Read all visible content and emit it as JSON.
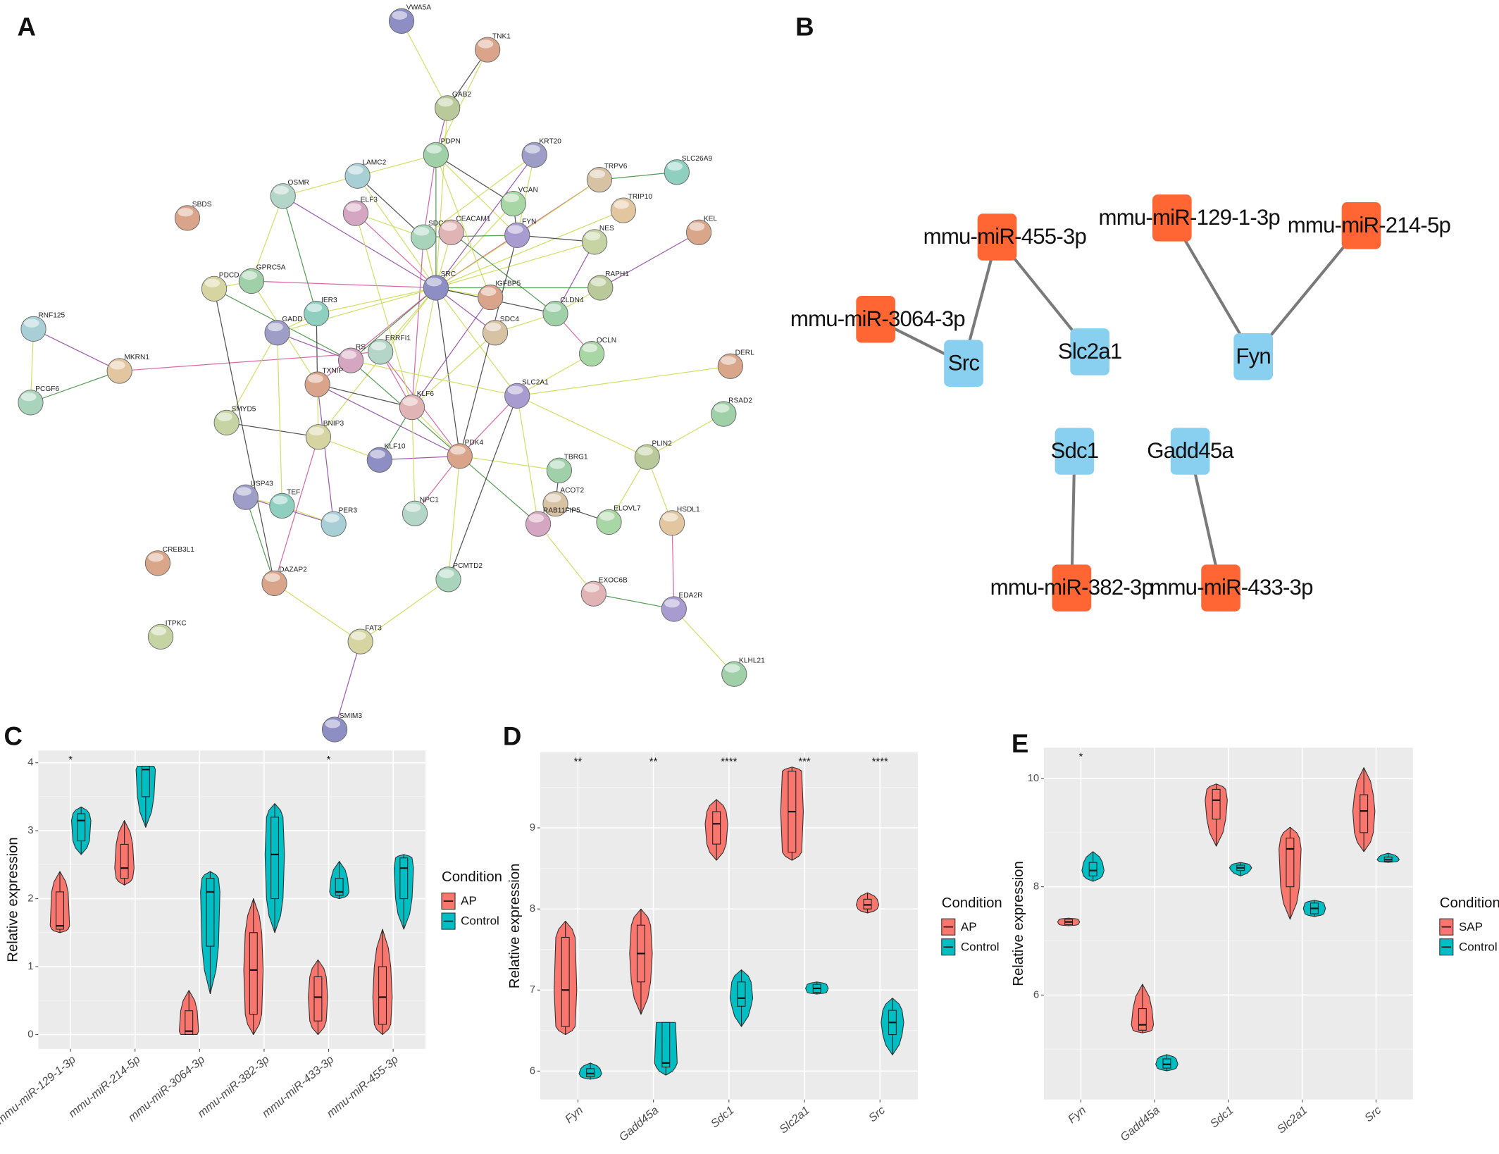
{
  "panel_labels": [
    "A",
    "B",
    "C",
    "D",
    "E"
  ],
  "network": {
    "nodes": [
      "VWA5A",
      "TNK1",
      "GAB2",
      "PDPN",
      "KRT20",
      "SLC26A9",
      "TRPV6",
      "LAMC2",
      "OSMR",
      "ELF3",
      "VCAN",
      "TRIP10",
      "KEL",
      "SBDS",
      "SDC1",
      "CEACAM1",
      "FYN",
      "NES",
      "PDCD",
      "GPRC5A",
      "SRC",
      "IGFBP5",
      "RAPH1",
      "CLDN4",
      "GADD",
      "IER3",
      "SDC4",
      "RNF125",
      "ERRFI1",
      "RS",
      "OCLN",
      "MKRN1",
      "DERL",
      "TXNIP",
      "PCGF6",
      "KLF6",
      "SLC2A1",
      "SMYD5",
      "BNIP3",
      "RSAD2",
      "KLF10",
      "PDK4",
      "PLIN2",
      "TBRG1",
      "USP43",
      "TEF",
      "ACOT2",
      "PER3",
      "NPC1",
      "RAB11FIP5",
      "ELOVL7",
      "HSDL1",
      "CREB3L1",
      "DAZAP2",
      "PCMTD2",
      "EXOC6B",
      "EDA2R",
      "ITPKC",
      "FAT3",
      "KLHL21",
      "SMIM3"
    ]
  },
  "mirna_network": {
    "nodes": [
      {
        "label": "mmu-miR-455-3p",
        "color": "#ff6633"
      },
      {
        "label": "mmu-miR-3064-3p",
        "color": "#ff6633"
      },
      {
        "label": "Src",
        "color": "#89cff0"
      },
      {
        "label": "Slc2a1",
        "color": "#89cff0"
      },
      {
        "label": "mmu-miR-129-1-3p",
        "color": "#ff6633"
      },
      {
        "label": "mmu-miR-214-5p",
        "color": "#ff6633"
      },
      {
        "label": "Fyn",
        "color": "#89cff0"
      },
      {
        "label": "Sdc1",
        "color": "#89cff0"
      },
      {
        "label": "Gadd45a",
        "color": "#89cff0"
      },
      {
        "label": "mmu-miR-382-3p",
        "color": "#ff6633"
      },
      {
        "label": "mmu-miR-433-3p",
        "color": "#ff6633"
      }
    ]
  },
  "chart_data": [
    {
      "type": "violin",
      "y_label": "Relative expression",
      "legend_title": "Condition",
      "categories": [
        "mmu-miR-129-1-3p",
        "mmu-miR-214-5p",
        "mmu-miR-3064-3p",
        "mmu-miR-382-3p",
        "mmu-miR-433-3p",
        "mmu-miR-455-3p"
      ],
      "annotations": [
        "*",
        null,
        null,
        null,
        "*",
        null
      ],
      "series": [
        {
          "name": "AP",
          "color": "#f8766d",
          "min": [
            1.5,
            2.2,
            0,
            0,
            0,
            0
          ],
          "q1": [
            1.55,
            2.3,
            0,
            0.3,
            0.2,
            0.15
          ],
          "values": [
            1.6,
            2.45,
            0.05,
            0.95,
            0.55,
            0.55
          ],
          "q3": [
            2.1,
            2.8,
            0.35,
            1.5,
            0.85,
            1.0
          ],
          "max": [
            2.4,
            3.15,
            0.65,
            2.0,
            1.1,
            1.55
          ]
        },
        {
          "name": "Control",
          "color": "#00bfc4",
          "min": [
            2.65,
            3.05,
            0.6,
            1.5,
            2.0,
            1.55
          ],
          "q1": [
            2.85,
            3.5,
            1.3,
            2.0,
            2.05,
            2.0
          ],
          "values": [
            3.15,
            3.9,
            2.1,
            2.65,
            2.1,
            2.45
          ],
          "q3": [
            3.25,
            3.95,
            2.3,
            3.2,
            2.3,
            2.6
          ],
          "max": [
            3.35,
            3.95,
            2.4,
            3.4,
            2.55,
            2.65
          ]
        }
      ],
      "ylim": [
        -0.21,
        4.18
      ],
      "yticks": [
        0,
        1,
        2,
        3,
        4
      ],
      "grid": true
    },
    {
      "type": "violin",
      "y_label": "Relative expression",
      "legend_title": "Condition",
      "categories": [
        "Fyn",
        "Gadd45a",
        "Sdc1",
        "Slc2a1",
        "Src"
      ],
      "annotations": [
        "**",
        "**",
        "****",
        "***",
        "****"
      ],
      "series": [
        {
          "name": "AP",
          "color": "#f8766d",
          "min": [
            6.45,
            6.7,
            8.6,
            8.6,
            7.95
          ],
          "q1": [
            6.55,
            7.1,
            8.8,
            8.7,
            8.0
          ],
          "values": [
            7.0,
            7.45,
            9.05,
            9.2,
            8.05
          ],
          "q3": [
            7.65,
            7.8,
            9.2,
            9.7,
            8.12
          ],
          "max": [
            7.85,
            8.0,
            9.35,
            9.75,
            8.2
          ]
        },
        {
          "name": "Control",
          "color": "#00bfc4",
          "min": [
            5.9,
            5.95,
            6.55,
            6.95,
            6.2
          ],
          "q1": [
            5.93,
            6.05,
            6.8,
            6.97,
            6.45
          ],
          "values": [
            5.97,
            6.1,
            6.9,
            7.02,
            6.6
          ],
          "q3": [
            6.03,
            6.6,
            7.1,
            7.07,
            6.75
          ],
          "max": [
            6.1,
            6.6,
            7.25,
            7.1,
            6.9
          ]
        }
      ],
      "ylim": [
        5.65,
        9.93
      ],
      "yticks": [
        6,
        7,
        8,
        9
      ],
      "grid": true
    },
    {
      "type": "violin",
      "y_label": "Relative expression",
      "legend_title": "Condition",
      "categories": [
        "Fyn",
        "Gadd45a",
        "Sdc1",
        "Slc2a1",
        "Src"
      ],
      "annotations": [
        "*",
        null,
        null,
        null,
        null
      ],
      "series": [
        {
          "name": "SAP",
          "color": "#f8766d",
          "min": [
            7.28,
            5.3,
            8.75,
            7.4,
            8.65
          ],
          "q1": [
            7.3,
            5.35,
            9.25,
            8.0,
            9.0
          ],
          "values": [
            7.35,
            5.45,
            9.6,
            8.7,
            9.4
          ],
          "q3": [
            7.4,
            5.75,
            9.8,
            8.9,
            9.7
          ],
          "max": [
            7.42,
            6.2,
            9.9,
            9.1,
            10.2
          ]
        },
        {
          "name": "Control",
          "color": "#00bfc4",
          "min": [
            8.1,
            4.6,
            8.2,
            7.45,
            8.45
          ],
          "q1": [
            8.2,
            4.65,
            8.3,
            7.5,
            8.47
          ],
          "values": [
            8.3,
            4.72,
            8.35,
            7.6,
            8.5
          ],
          "q3": [
            8.45,
            4.82,
            8.4,
            7.7,
            8.55
          ],
          "max": [
            8.65,
            4.9,
            8.45,
            7.75,
            8.62
          ]
        }
      ],
      "ylim": [
        4.07,
        10.57
      ],
      "yticks": [
        6,
        8,
        10
      ],
      "grid": true
    }
  ]
}
